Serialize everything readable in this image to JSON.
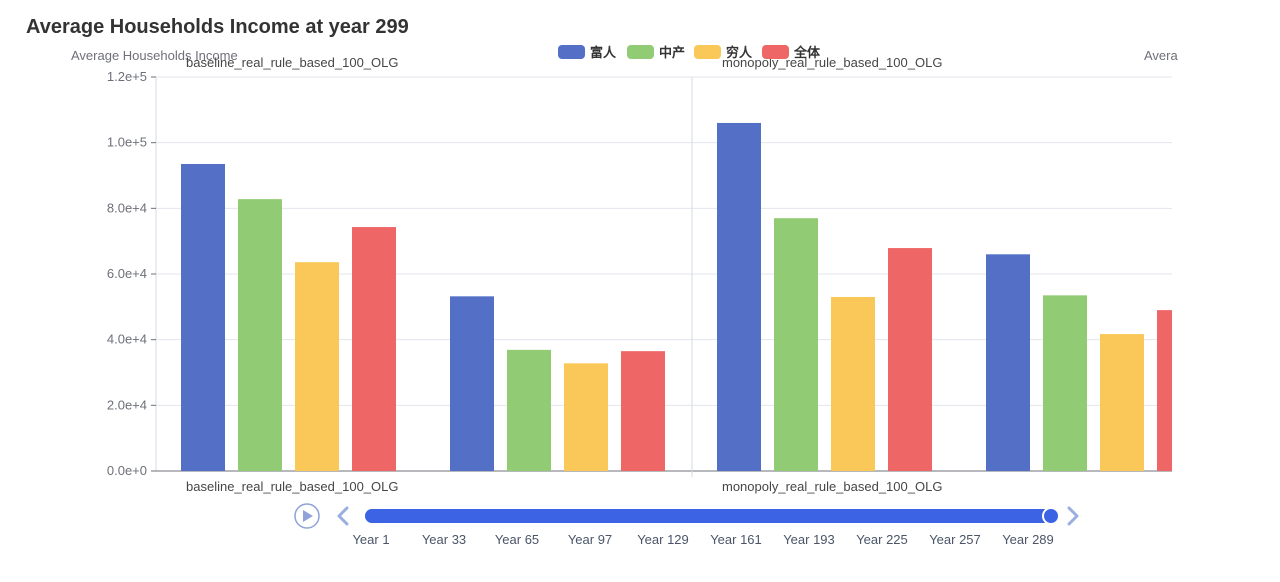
{
  "title": "Average Households Income at year 299",
  "chart_data": {
    "type": "bar",
    "title": "Average Households Income at year 299",
    "ylabel": "Average Households Income",
    "ylabel_right_partial": "Avera",
    "ylim": [
      0,
      120000
    ],
    "yticks": [
      0,
      20000,
      40000,
      60000,
      80000,
      100000,
      120000
    ],
    "ytick_labels": [
      "0.0e+0",
      "2.0e+4",
      "4.0e+4",
      "6.0e+4",
      "8.0e+4",
      "1.0e+5",
      "1.2e+5"
    ],
    "grid": true,
    "legend_position": "top-center",
    "series": [
      {
        "name": "富人",
        "color": "#5470c6"
      },
      {
        "name": "中产",
        "color": "#91cc75"
      },
      {
        "name": "穷人",
        "color": "#fac858"
      },
      {
        "name": "全体",
        "color": "#ee6666"
      }
    ],
    "panels": [
      {
        "label": "baseline_real_rule_based_100_OLG",
        "groups": [
          {
            "values": [
              93500,
              82800,
              63600,
              74300
            ]
          },
          {
            "values": [
              53200,
              36900,
              32800,
              36500
            ]
          }
        ]
      },
      {
        "label": "monopoly_real_rule_based_100_OLG",
        "groups": [
          {
            "values": [
              106000,
              77000,
              53000,
              67900
            ]
          },
          {
            "values": [
              66000,
              53500,
              41700,
              49000
            ]
          }
        ]
      }
    ]
  },
  "timeline": {
    "labels": [
      "Year 1",
      "Year 33",
      "Year 65",
      "Year 97",
      "Year 129",
      "Year 161",
      "Year 193",
      "Year 225",
      "Year 257",
      "Year 289"
    ],
    "progress": 1.0,
    "play_icon": "play-icon",
    "prev_icon": "chevron-left-icon",
    "next_icon": "chevron-right-icon",
    "accent": "#3b63e3"
  }
}
